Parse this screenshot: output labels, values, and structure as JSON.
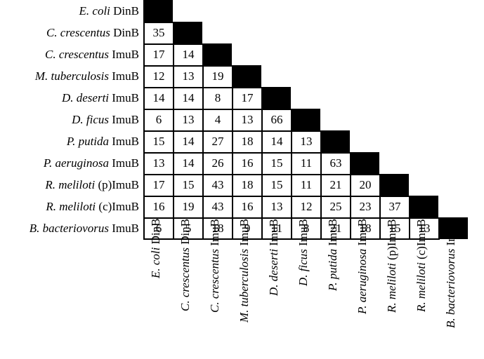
{
  "labels": [
    {
      "species": "E. coli",
      "suffix": " DinB"
    },
    {
      "species": "C. crescentus",
      "suffix": " DinB"
    },
    {
      "species": "C. crescentus",
      "suffix": " ImuB"
    },
    {
      "species": "M. tuberculosis",
      "suffix": " ImuB"
    },
    {
      "species": "D. deserti",
      "suffix": " ImuB"
    },
    {
      "species": "D. ficus",
      "suffix": " ImuB"
    },
    {
      "species": "P. putida",
      "suffix": " ImuB"
    },
    {
      "species": "P. aeruginosa",
      "suffix": " ImuB"
    },
    {
      "species": "R. meliloti",
      "suffix": " (p)ImuB"
    },
    {
      "species": "R. meliloti",
      "suffix": " (c)ImuB"
    },
    {
      "species": "B. bacteriovorus",
      "suffix": " ImuB"
    }
  ],
  "chart_data": {
    "type": "table",
    "matrix": [
      [],
      [
        35
      ],
      [
        17,
        14
      ],
      [
        12,
        13,
        19
      ],
      [
        14,
        14,
        8,
        17
      ],
      [
        6,
        13,
        4,
        13,
        66
      ],
      [
        15,
        14,
        27,
        18,
        14,
        13
      ],
      [
        13,
        14,
        26,
        16,
        15,
        11,
        63
      ],
      [
        17,
        15,
        43,
        18,
        15,
        11,
        21,
        20
      ],
      [
        16,
        19,
        43,
        16,
        13,
        12,
        25,
        23,
        37
      ],
      [
        6,
        5,
        18,
        9,
        11,
        8,
        21,
        18,
        15,
        13
      ]
    ],
    "diagonal_color": "#000000"
  }
}
